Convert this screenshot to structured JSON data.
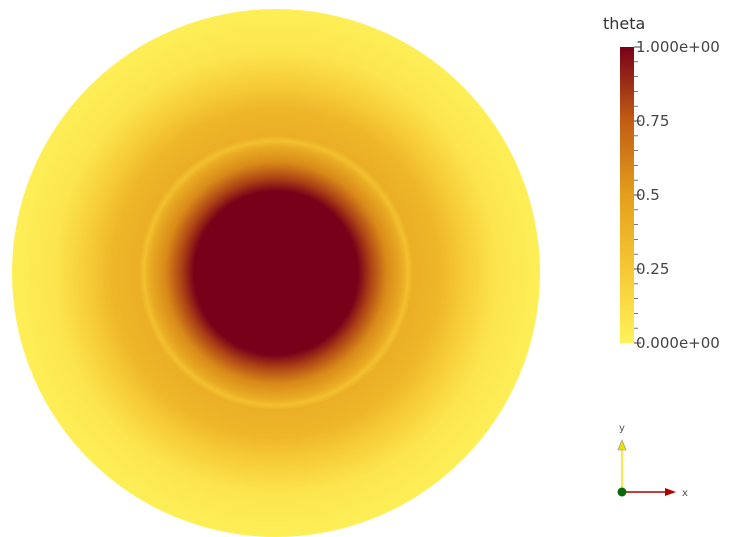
{
  "field": {
    "name": "theta",
    "range": [
      0,
      1
    ],
    "radial_profile": [
      {
        "r": 0.0,
        "value": 1.0
      },
      {
        "r": 0.31,
        "value": 1.0
      },
      {
        "r": 0.36,
        "value": 0.82
      },
      {
        "r": 0.42,
        "value": 0.58
      },
      {
        "r": 0.48,
        "value": 0.42
      },
      {
        "r": 0.5,
        "value": 0.3
      },
      {
        "r": 0.52,
        "value": 0.4
      },
      {
        "r": 0.62,
        "value": 0.36
      },
      {
        "r": 0.72,
        "value": 0.22
      },
      {
        "r": 0.84,
        "value": 0.08
      },
      {
        "r": 1.0,
        "value": 0.02
      }
    ]
  },
  "colormap": {
    "stops": [
      {
        "value": 0.0,
        "color": "#fff25a"
      },
      {
        "value": 0.25,
        "color": "#f6c834"
      },
      {
        "value": 0.5,
        "color": "#e49f1c"
      },
      {
        "value": 0.75,
        "color": "#c25d14"
      },
      {
        "value": 1.0,
        "color": "#780019"
      }
    ]
  },
  "legend": {
    "title": "theta",
    "ticks": [
      {
        "value": 1.0,
        "label": "1.000e+00"
      },
      {
        "value": 0.75,
        "label": "0.75"
      },
      {
        "value": 0.5,
        "label": "0.5"
      },
      {
        "value": 0.25,
        "label": "0.25"
      },
      {
        "value": 0.0,
        "label": "0.000e+00"
      }
    ],
    "minor_tick_count": 20
  },
  "axes": {
    "y_label": "y",
    "x_label": "x",
    "colors": {
      "y": "#f0e000",
      "x": "#b00000",
      "origin": "#0a6a0a"
    }
  }
}
